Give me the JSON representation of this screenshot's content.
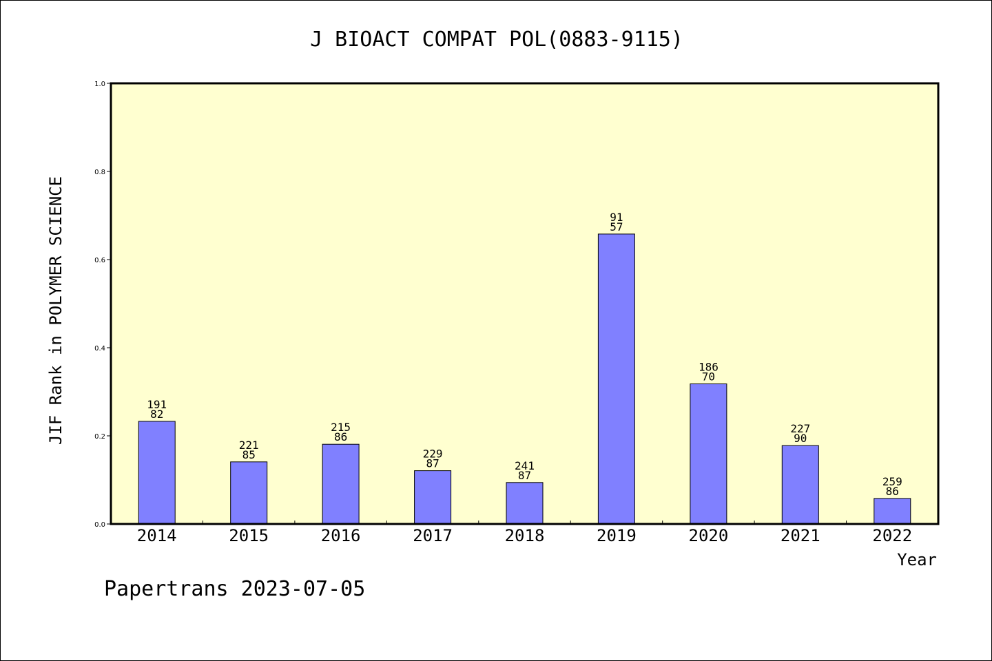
{
  "chart_data": {
    "type": "bar",
    "title": "J BIOACT COMPAT POL(0883-9115)",
    "xlabel": "Year",
    "ylabel": "JIF Rank in POLYMER SCIENCE",
    "ylim": [
      0,
      1.0
    ],
    "yticks": [
      "0.0",
      "0.2",
      "0.4",
      "0.6",
      "0.8",
      "1.0"
    ],
    "grid": false,
    "categories": [
      "2014",
      "2015",
      "2016",
      "2017",
      "2018",
      "2019",
      "2020",
      "2021",
      "2022"
    ],
    "values": [
      0.233,
      0.141,
      0.181,
      0.121,
      0.094,
      0.658,
      0.318,
      0.178,
      0.058
    ],
    "labels_top": [
      "191",
      "221",
      "215",
      "229",
      "241",
      "91",
      "186",
      "227",
      "259"
    ],
    "labels_bottom": [
      "82",
      "85",
      "86",
      "87",
      "87",
      "57",
      "70",
      "90",
      "86"
    ],
    "colors": {
      "plot_background": "#ffffd0",
      "bar_fill": "#8080ff",
      "bar_stroke": "#000000"
    }
  },
  "footer": "Papertrans 2023-07-05"
}
